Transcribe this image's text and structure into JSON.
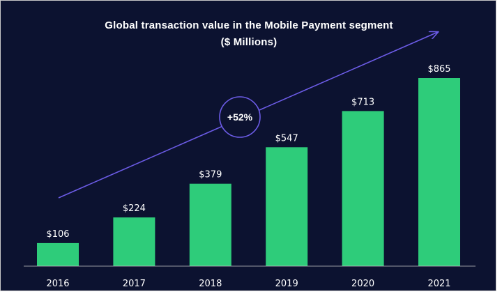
{
  "chart_data": {
    "type": "bar",
    "title": "Global transaction value in the Mobile Payment segment",
    "subtitle": "($ Millions)",
    "categories": [
      "2016",
      "2017",
      "2018",
      "2019",
      "2020",
      "2021"
    ],
    "values": [
      106,
      224,
      379,
      547,
      713,
      865
    ],
    "data_labels": [
      "$106",
      "$224",
      "$379",
      "$547",
      "$713",
      "$865"
    ],
    "ylim": [
      0,
      960
    ],
    "grid": false,
    "annotation": {
      "type": "growth-arrow",
      "label": "+52%"
    },
    "colors": {
      "background": "#0c1230",
      "bar": "#2ecc7a",
      "arrow": "#6c5ce7",
      "text": "#ffffff"
    }
  }
}
